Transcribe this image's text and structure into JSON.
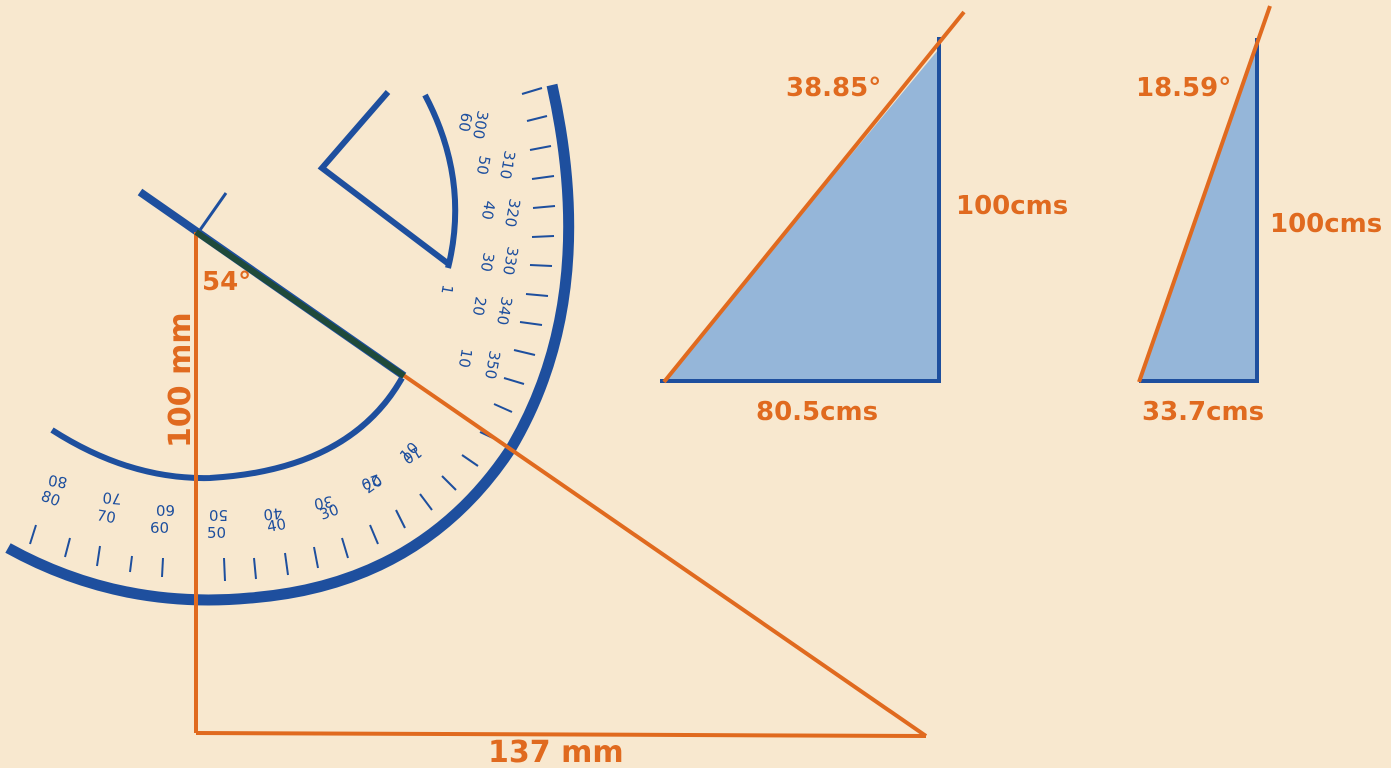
{
  "diagram": {
    "main_triangle": {
      "vertical_label": "100 mm",
      "horizontal_label": "137 mm",
      "angle_label": "54°"
    },
    "triangle_a": {
      "angle_label": "38.85°",
      "height_label": "100cms",
      "base_label": "80.5cms"
    },
    "triangle_b": {
      "angle_label": "18.59°",
      "height_label": "100cms",
      "base_label": "33.7cms"
    },
    "protractor": {
      "outer_scale_upper": [
        "300",
        "310",
        "320",
        "330",
        "340",
        "350"
      ],
      "inner_scale_upper": [
        "60",
        "50",
        "40",
        "30",
        "20",
        "10",
        "1"
      ],
      "outer_scale_lower": [
        "80",
        "70",
        "60",
        "50",
        "40",
        "30",
        "20",
        "10"
      ],
      "inner_scale_lower": [
        "80",
        "70",
        "60",
        "50",
        "40",
        "30",
        "20",
        "10"
      ]
    },
    "colors": {
      "background": "#f8e8cf",
      "orange": "#e06a1f",
      "blue": "#1e4f9e",
      "fill_blue": "#8fb3d9"
    }
  }
}
